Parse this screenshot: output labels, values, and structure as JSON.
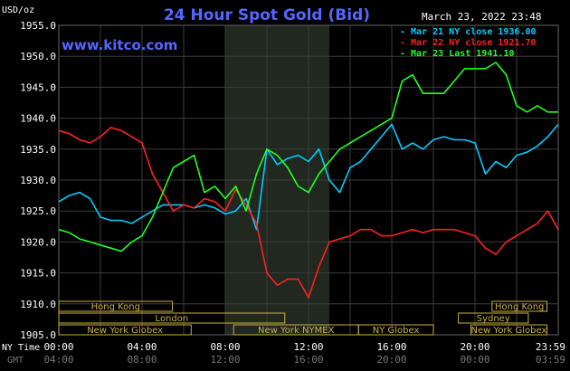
{
  "chart_data": {
    "type": "line",
    "title": "24 Hour Spot Gold (Bid)",
    "website": "www.kitco.com",
    "timestamp": "March 23, 2022 23:48",
    "ylabel": "USD/oz",
    "ylim": [
      1905,
      1955
    ],
    "y_ticks": [
      "1955.0",
      "1950.0",
      "1945.0",
      "1940.0",
      "1935.0",
      "1930.0",
      "1925.0",
      "1920.0",
      "1915.0",
      "1910.0",
      "1905.0"
    ],
    "x_ticks_ny": [
      "00:00",
      "04:00",
      "08:00",
      "12:00",
      "16:00",
      "20:00",
      "23:59"
    ],
    "x_ticks_gmt": [
      "04:00",
      "08:00",
      "12:00",
      "16:00",
      "20:00",
      "00:00",
      "03:59"
    ],
    "x_row_labels": {
      "ny": "NY Time",
      "gmt": "GMT"
    },
    "legend": [
      {
        "name": "Mar 21 NY close",
        "value": "1936.00",
        "color": "#00ccff"
      },
      {
        "name": "Mar 22 NY close",
        "value": "1921.70",
        "color": "#ff2020"
      },
      {
        "name": "Mar 23 Last",
        "value": "1941.10",
        "color": "#20ff20"
      }
    ],
    "legend_placement": "top-right",
    "series": [
      {
        "name": "Mar 21 NY close",
        "color": "#00ccff",
        "x": [
          0,
          0.5,
          1,
          1.5,
          2,
          2.5,
          3,
          3.5,
          4,
          4.5,
          5,
          5.5,
          6,
          6.5,
          7,
          7.5,
          8,
          8.5,
          9,
          9.5,
          10,
          10.5,
          11,
          11.5,
          12,
          12.5,
          13,
          13.5,
          14,
          14.5,
          15,
          15.5,
          16,
          16.5,
          17,
          17.5,
          18,
          18.5,
          19,
          19.5,
          20,
          20.5,
          21,
          21.5,
          22,
          22.5,
          23,
          23.5,
          24
        ],
        "y": [
          1926.5,
          1927.5,
          1928,
          1927,
          1924,
          1923.5,
          1923.5,
          1923,
          1924,
          1925,
          1926,
          1926,
          1926,
          1925.5,
          1926,
          1925.5,
          1924.5,
          1925,
          1927,
          1922,
          1935,
          1932.5,
          1933.5,
          1934,
          1933,
          1935,
          1930,
          1928,
          1932,
          1933,
          1935,
          1937,
          1939,
          1935,
          1936,
          1935,
          1936.5,
          1937,
          1936.5,
          1936.5,
          1936,
          1931,
          1933,
          1932,
          1934,
          1934.5,
          1935.5,
          1937,
          1939
        ]
      },
      {
        "name": "Mar 22 NY close",
        "color": "#ff2020",
        "x": [
          0,
          0.5,
          1,
          1.5,
          2,
          2.5,
          3,
          3.5,
          4,
          4.5,
          5,
          5.5,
          6,
          6.5,
          7,
          7.5,
          8,
          8.5,
          9,
          9.5,
          10,
          10.5,
          11,
          11.5,
          12,
          12.5,
          13,
          13.5,
          14,
          14.5,
          15,
          15.5,
          16,
          16.5,
          17,
          17.5,
          18,
          18.5,
          19,
          19.5,
          20,
          20.5,
          21,
          21.5,
          22,
          22.5,
          23,
          23.5,
          24
        ],
        "y": [
          1938,
          1937.5,
          1936.5,
          1936,
          1937,
          1938.5,
          1938,
          1937,
          1936,
          1931,
          1928,
          1925,
          1926,
          1925.5,
          1927,
          1926.5,
          1925,
          1928.5,
          1926,
          1923,
          1915,
          1913,
          1914,
          1914,
          1911,
          1916,
          1920,
          1920.5,
          1921,
          1922,
          1922,
          1921,
          1921,
          1921.5,
          1922,
          1921.5,
          1922,
          1922,
          1922,
          1921.5,
          1921,
          1919,
          1918,
          1920,
          1921,
          1922,
          1923,
          1925,
          1922
        ]
      },
      {
        "name": "Mar 23 Last",
        "color": "#20ff20",
        "x": [
          0,
          0.5,
          1,
          1.5,
          2,
          2.5,
          3,
          3.5,
          4,
          4.5,
          5,
          5.5,
          6,
          6.5,
          7,
          7.5,
          8,
          8.5,
          9,
          9.5,
          10,
          10.5,
          11,
          11.5,
          12,
          12.5,
          13,
          13.5,
          14,
          14.5,
          15,
          15.5,
          16,
          16.5,
          17,
          17.5,
          18,
          18.5,
          19,
          19.5,
          20,
          20.5,
          21,
          21.5,
          22,
          22.5,
          23,
          23.5,
          24
        ],
        "y": [
          1922,
          1921.5,
          1920.5,
          1920,
          1919.5,
          1919,
          1918.5,
          1920,
          1921,
          1924,
          1928,
          1932,
          1933,
          1934,
          1928,
          1929,
          1927,
          1929,
          1925,
          1931,
          1935,
          1934,
          1932,
          1929,
          1928,
          1931,
          1933,
          1935,
          1936,
          1937,
          1938,
          1939,
          1940,
          1946,
          1947,
          1944,
          1944,
          1944,
          1946,
          1948,
          1948,
          1948,
          1949,
          1947,
          1942,
          1941,
          1942,
          1941,
          1941
        ]
      }
    ],
    "sessions": [
      {
        "label": "Hong Kong",
        "start": 0,
        "end": 9.1,
        "row": 0
      },
      {
        "label": "London",
        "start": 0,
        "end": 18.1,
        "row": 1
      },
      {
        "label": "New York Globex",
        "start": 0,
        "end": 10.6,
        "row": 2
      },
      {
        "label": "New York NYMEX",
        "start": 14.0,
        "end": 24.0,
        "row": 2
      },
      {
        "label": "NY Globex",
        "start": 24.0,
        "end": 30.0,
        "row": 2
      },
      {
        "label": "Hong Kong",
        "start": 34.7,
        "end": 39.1,
        "row": 0
      },
      {
        "label": "Sydney",
        "start": 32.0,
        "end": 37.6,
        "row": 1
      },
      {
        "label": "New York Globex",
        "start": 33.0,
        "end": 39.1,
        "row": 2
      }
    ],
    "highlight_range": [
      8,
      13
    ],
    "grid": true
  }
}
